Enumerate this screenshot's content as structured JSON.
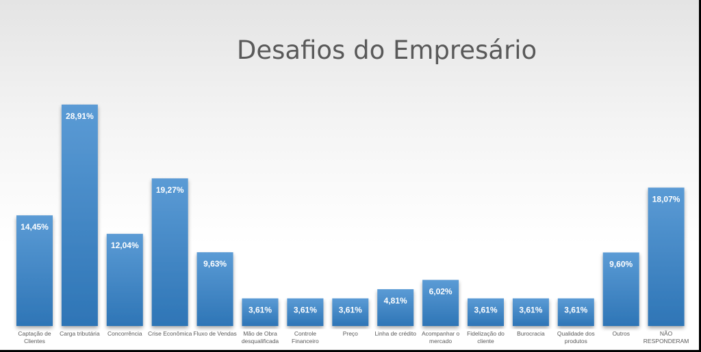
{
  "chart_data": {
    "type": "bar",
    "title": "Desafios do Empresário",
    "xlabel": "",
    "ylabel": "",
    "ylim": [
      0,
      31
    ],
    "grid": false,
    "colors": {
      "bar_top": "#5b9bd5",
      "bar_bottom": "#2e75b6",
      "text": "#595959",
      "label": "#ffffff"
    },
    "categories": [
      "Captação de Clientes",
      "Carga tributária",
      "Concorrência",
      "Crise Econômica",
      "Fluxo de Vendas",
      "Mão de Obra desqualificada",
      "Controle Financeiro",
      "Preço",
      "Linha de crédito",
      "Acompanhar o mercado",
      "Fidelização do cliente",
      "Burocracia",
      "Qualidade dos produtos",
      "Outros",
      "NÃO RESPONDERAM"
    ],
    "category_lines": [
      [
        "Captação de",
        "Clientes"
      ],
      [
        "Carga tributária"
      ],
      [
        "Concorrência"
      ],
      [
        "Crise Econômica"
      ],
      [
        "Fluxo de Vendas"
      ],
      [
        "Mão de Obra",
        "desqualificada"
      ],
      [
        "Controle",
        "Financeiro"
      ],
      [
        "Preço"
      ],
      [
        "Linha de crédito"
      ],
      [
        "Acompanhar o",
        "mercado"
      ],
      [
        "Fidelização do",
        "cliente"
      ],
      [
        "Burocracia"
      ],
      [
        "Qualidade dos",
        "produtos"
      ],
      [
        "Outros"
      ],
      [
        "NÃO",
        "RESPONDERAM"
      ]
    ],
    "values": [
      14.45,
      28.91,
      12.04,
      19.27,
      9.63,
      3.61,
      3.61,
      3.61,
      4.81,
      6.02,
      3.61,
      3.61,
      3.61,
      9.6,
      18.07
    ],
    "data_labels": [
      "14,45%",
      "28,91%",
      "12,04%",
      "19,27%",
      "9,63%",
      "3,61%",
      "3,61%",
      "3,61%",
      "4,81%",
      "6,02%",
      "3,61%",
      "3,61%",
      "3,61%",
      "9,60%",
      "18,07%"
    ]
  }
}
